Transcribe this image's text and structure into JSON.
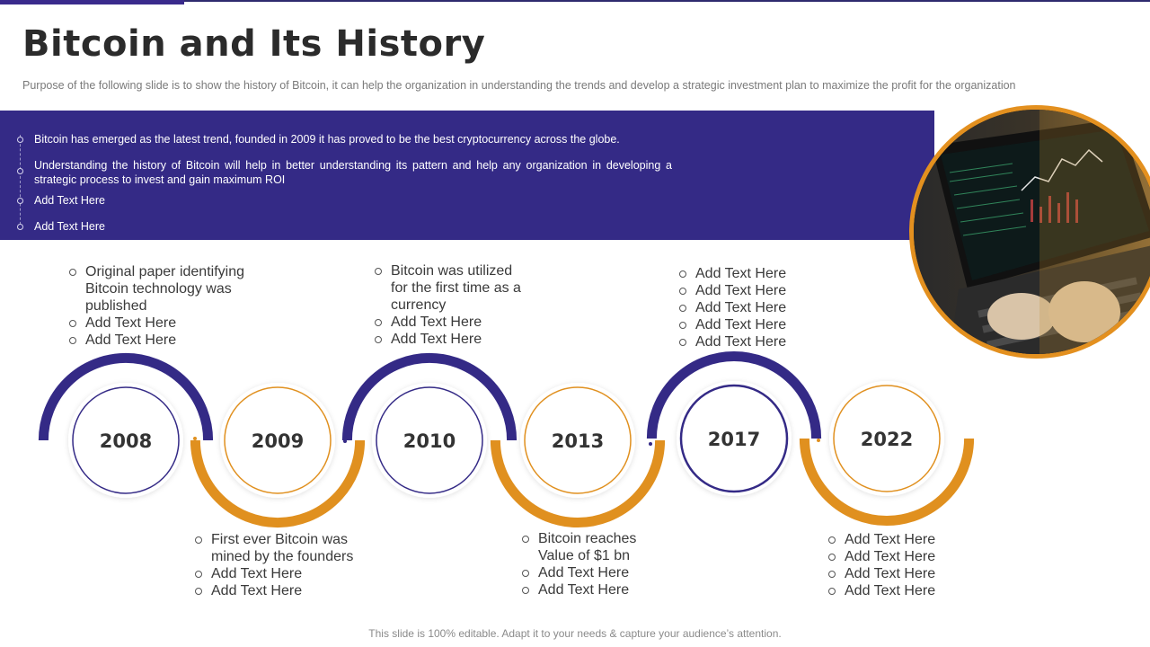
{
  "title": "Bitcoin and Its History",
  "subtitle": "Purpose of the following slide is to show the history of Bitcoin, it can help the organization in understanding the trends and develop a strategic investment plan to maximize the profit for the organization",
  "band": {
    "items": [
      "Bitcoin has emerged as the latest trend, founded in 2009 it has proved to be the best cryptocurrency across the globe.",
      "Understanding the history of Bitcoin will help in better understanding its pattern and help any organization in developing a strategic process to invest and gain maximum ROI",
      "Add Text Here",
      "Add Text Here"
    ]
  },
  "timeline": {
    "years": [
      "2008",
      "2009",
      "2010",
      "2013",
      "2017",
      "2022"
    ],
    "colors": {
      "purple": "#342a86",
      "orange": "#e0901f"
    },
    "notes": {
      "y2008": [
        "Original paper identifying Bitcoin technology was published",
        "Add Text Here",
        "Add Text Here"
      ],
      "y2009": [
        "First ever Bitcoin was mined by the founders",
        "Add Text Here",
        "Add Text Here"
      ],
      "y2010": [
        "Bitcoin was utilized for the first time as a currency",
        "Add Text Here",
        "Add Text Here"
      ],
      "y2013": [
        "Bitcoin reaches Value of $1 bn",
        "Add Text Here",
        "Add Text Here"
      ],
      "y2017": [
        "Add Text Here",
        "Add Text Here",
        "Add Text Here",
        "Add Text Here",
        "Add Text Here"
      ],
      "y2022": [
        "Add Text Here",
        "Add Text Here",
        "Add Text Here",
        "Add Text Here"
      ]
    }
  },
  "photo": {
    "subject": "laptop-trading-chart-image"
  },
  "footer": "This slide is 100% editable. Adapt it to your needs & capture your audience’s attention."
}
